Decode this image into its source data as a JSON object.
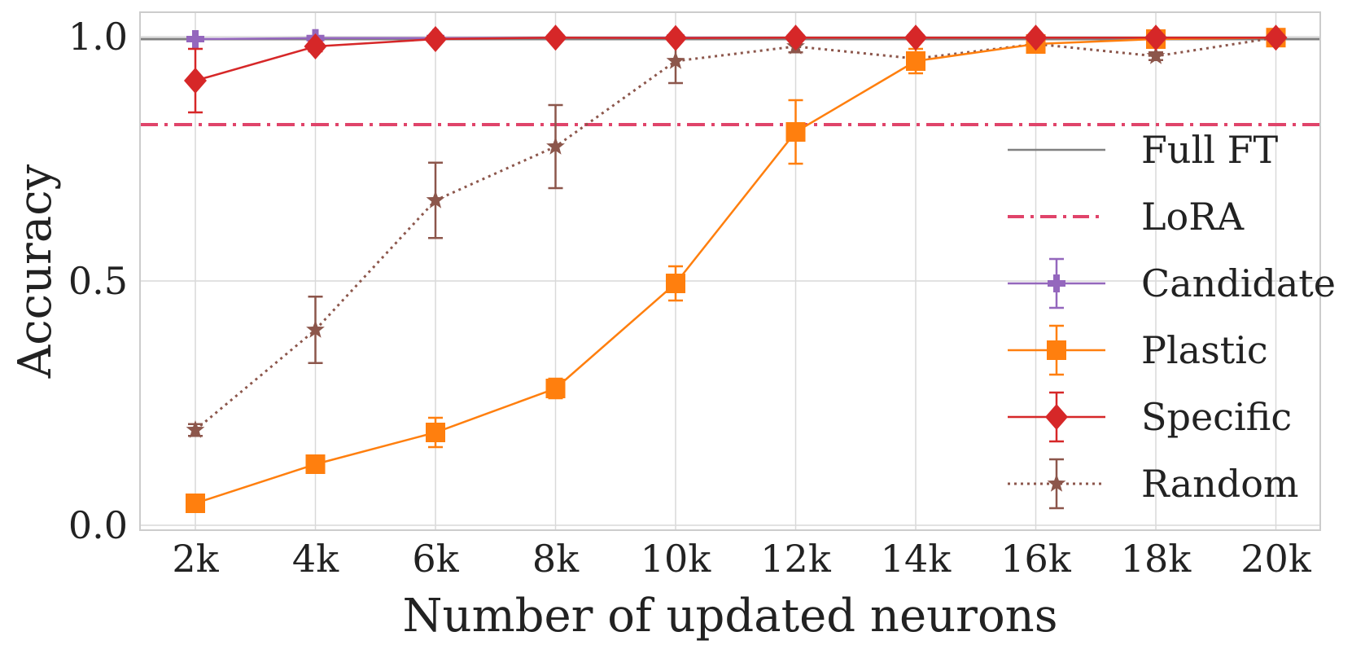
{
  "chart_data": {
    "type": "line",
    "title": "",
    "xlabel": "Number of updated neurons",
    "ylabel": "Accuracy",
    "categories": [
      "2k",
      "4k",
      "6k",
      "8k",
      "10k",
      "12k",
      "14k",
      "16k",
      "18k",
      "20k"
    ],
    "yticks": [
      {
        "value": 0.0,
        "label": "0.0"
      },
      {
        "value": 0.5,
        "label": "0.5"
      },
      {
        "value": 1.0,
        "label": "1.0"
      }
    ],
    "ylim": [
      -0.01,
      1.05
    ],
    "grid": true,
    "legend_position": "right",
    "reference_lines": [
      {
        "name": "Full FT",
        "value": 0.995,
        "color": "#808080",
        "style": "solid"
      },
      {
        "name": "LoRA",
        "value": 0.82,
        "color": "#e0446a",
        "style": "dashdot"
      }
    ],
    "series": [
      {
        "name": "Candidate",
        "color": "#9467bd",
        "marker": "plus",
        "style": "solid",
        "values": [
          0.995,
          0.997,
          0.997,
          0.998,
          0.998,
          0.998,
          0.998,
          0.998,
          0.998,
          0.998
        ],
        "errors": [
          0.004,
          0.004,
          0.002,
          0.002,
          0.002,
          0.002,
          0.002,
          0.002,
          0.002,
          0.002
        ]
      },
      {
        "name": "Plastic",
        "color": "#ff7f0e",
        "marker": "square",
        "style": "solid",
        "values": [
          0.045,
          0.125,
          0.19,
          0.28,
          0.495,
          0.805,
          0.95,
          0.985,
          0.995,
          0.998
        ],
        "errors": [
          0.005,
          0.012,
          0.03,
          0.02,
          0.035,
          0.065,
          0.025,
          0.008,
          0.005,
          0.003
        ]
      },
      {
        "name": "Specific",
        "color": "#d62728",
        "marker": "diamond",
        "style": "solid",
        "values": [
          0.91,
          0.98,
          0.995,
          0.998,
          0.997,
          0.998,
          0.998,
          0.998,
          0.998,
          0.998
        ],
        "errors": [
          0.065,
          0.01,
          0.003,
          0.002,
          0.002,
          0.002,
          0.002,
          0.002,
          0.002,
          0.002
        ]
      },
      {
        "name": "Random",
        "color": "#8c564b",
        "marker": "star",
        "style": "dotted",
        "values": [
          0.195,
          0.4,
          0.665,
          0.775,
          0.95,
          0.98,
          0.955,
          0.985,
          0.96,
          0.998
        ],
        "errors": [
          0.012,
          0.068,
          0.077,
          0.085,
          0.045,
          0.012,
          0.012,
          0.008,
          0.008,
          0.003
        ]
      }
    ]
  }
}
